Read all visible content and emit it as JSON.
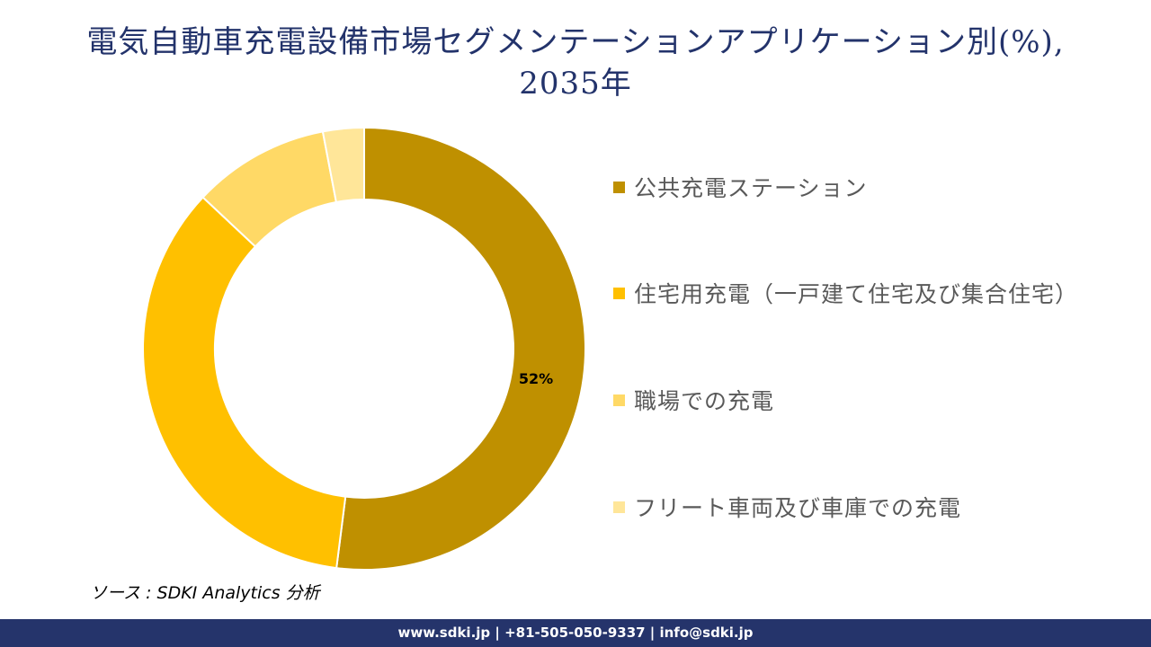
{
  "header": {
    "title_line1": "電気自動車充電設備市場セグメンテーションアプリケーション別(%),",
    "title_line2": "2035年"
  },
  "chart_data": {
    "type": "pie",
    "subtype": "donut",
    "title": "電気自動車充電設備市場セグメンテーションアプリケーション別(%), 2035年",
    "categories": [
      "公共充電ステーション",
      "住宅用充電（一戸建て住宅及び集合住宅）",
      "職場での充電",
      "フリート車両及び車庫での充電"
    ],
    "values": [
      52,
      35,
      10,
      3
    ],
    "colors": [
      "#bf9000",
      "#ffc000",
      "#ffd966",
      "#ffe699"
    ],
    "data_labels": [
      "52%",
      "",
      "",
      ""
    ],
    "legend_position": "right",
    "start_angle": 0,
    "direction": "clockwise"
  },
  "legend": {
    "items": [
      {
        "label": "公共充電ステーション",
        "color": "#bf9000"
      },
      {
        "label": "住宅用充電（一戸建て住宅及び集合住宅）",
        "color": "#ffc000"
      },
      {
        "label": "職場での充電",
        "color": "#ffd966"
      },
      {
        "label": "フリート車両及び車庫での充電",
        "color": "#ffe699"
      }
    ]
  },
  "source": {
    "text": "ソース : SDKI Analytics 分析"
  },
  "footer": {
    "text": "www.sdki.jp | +81-505-050-9337 | info@sdki.jp"
  }
}
